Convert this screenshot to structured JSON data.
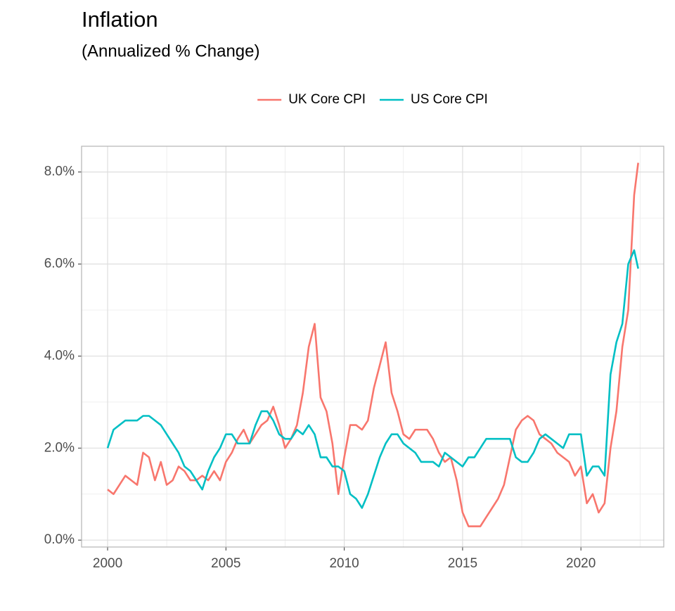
{
  "chart_data": {
    "type": "line",
    "title": "Inflation",
    "subtitle": "(Annualized % Change)",
    "x": [
      2000,
      2000.25,
      2000.5,
      2000.75,
      2001,
      2001.25,
      2001.5,
      2001.75,
      2002,
      2002.25,
      2002.5,
      2002.75,
      2003,
      2003.25,
      2003.5,
      2003.75,
      2004,
      2004.25,
      2004.5,
      2004.75,
      2005,
      2005.25,
      2005.5,
      2005.75,
      2006,
      2006.25,
      2006.5,
      2006.75,
      2007,
      2007.25,
      2007.5,
      2007.75,
      2008,
      2008.25,
      2008.5,
      2008.75,
      2009,
      2009.25,
      2009.5,
      2009.75,
      2010,
      2010.25,
      2010.5,
      2010.75,
      2011,
      2011.25,
      2011.5,
      2011.75,
      2012,
      2012.25,
      2012.5,
      2012.75,
      2013,
      2013.25,
      2013.5,
      2013.75,
      2014,
      2014.25,
      2014.5,
      2014.75,
      2015,
      2015.25,
      2015.5,
      2015.75,
      2016,
      2016.25,
      2016.5,
      2016.75,
      2017,
      2017.25,
      2017.5,
      2017.75,
      2018,
      2018.25,
      2018.5,
      2018.75,
      2019,
      2019.25,
      2019.5,
      2019.75,
      2020,
      2020.25,
      2020.5,
      2020.75,
      2021,
      2021.25,
      2021.5,
      2021.75,
      2022,
      2022.25,
      2022.42
    ],
    "series": [
      {
        "name": "UK Core CPI",
        "color": "#F8766D",
        "values": [
          1.1,
          1.0,
          1.2,
          1.4,
          1.3,
          1.2,
          1.9,
          1.8,
          1.3,
          1.7,
          1.2,
          1.3,
          1.6,
          1.5,
          1.3,
          1.3,
          1.4,
          1.3,
          1.5,
          1.3,
          1.7,
          1.9,
          2.2,
          2.4,
          2.1,
          2.3,
          2.5,
          2.6,
          2.9,
          2.5,
          2.0,
          2.2,
          2.5,
          3.2,
          4.2,
          4.7,
          3.1,
          2.8,
          2.1,
          1.0,
          1.8,
          2.5,
          2.5,
          2.4,
          2.6,
          3.3,
          3.8,
          4.3,
          3.2,
          2.8,
          2.3,
          2.2,
          2.4,
          2.4,
          2.4,
          2.2,
          1.9,
          1.7,
          1.8,
          1.3,
          0.6,
          0.3,
          0.3,
          0.3,
          0.5,
          0.7,
          0.9,
          1.2,
          1.8,
          2.4,
          2.6,
          2.7,
          2.6,
          2.3,
          2.2,
          2.1,
          1.9,
          1.8,
          1.7,
          1.4,
          1.6,
          0.8,
          1.0,
          0.6,
          0.8,
          2.0,
          2.8,
          4.2,
          5.0,
          7.5,
          8.2
        ]
      },
      {
        "name": "US Core CPI",
        "color": "#00BFC4",
        "values": [
          2.0,
          2.4,
          2.5,
          2.6,
          2.6,
          2.6,
          2.7,
          2.7,
          2.6,
          2.5,
          2.3,
          2.1,
          1.9,
          1.6,
          1.5,
          1.3,
          1.1,
          1.5,
          1.8,
          2.0,
          2.3,
          2.3,
          2.1,
          2.1,
          2.1,
          2.5,
          2.8,
          2.8,
          2.6,
          2.3,
          2.2,
          2.2,
          2.4,
          2.3,
          2.5,
          2.3,
          1.8,
          1.8,
          1.6,
          1.6,
          1.5,
          1.0,
          0.9,
          0.7,
          1.0,
          1.4,
          1.8,
          2.1,
          2.3,
          2.3,
          2.1,
          2.0,
          1.9,
          1.7,
          1.7,
          1.7,
          1.6,
          1.9,
          1.8,
          1.7,
          1.6,
          1.8,
          1.8,
          2.0,
          2.2,
          2.2,
          2.2,
          2.2,
          2.2,
          1.8,
          1.7,
          1.7,
          1.9,
          2.2,
          2.3,
          2.2,
          2.1,
          2.0,
          2.3,
          2.3,
          2.3,
          1.4,
          1.6,
          1.6,
          1.4,
          3.6,
          4.3,
          4.7,
          6.0,
          6.3,
          5.9
        ]
      }
    ],
    "xlim": [
      1998.9,
      2023.5
    ],
    "xticks": [
      2000,
      2005,
      2010,
      2015,
      2020
    ],
    "x_minor_ticks": [
      2002.5,
      2007.5,
      2012.5,
      2017.5,
      2022.5
    ],
    "ylim": [
      -0.15,
      8.56
    ],
    "yticks": [
      {
        "value": 0,
        "label": "0.0%"
      },
      {
        "value": 2,
        "label": "2.0%"
      },
      {
        "value": 4,
        "label": "4.0%"
      },
      {
        "value": 6,
        "label": "6.0%"
      },
      {
        "value": 8,
        "label": "8.0%"
      }
    ],
    "y_minor_ticks": [
      1,
      3,
      5,
      7
    ],
    "grid": true,
    "legend_position": "top"
  }
}
